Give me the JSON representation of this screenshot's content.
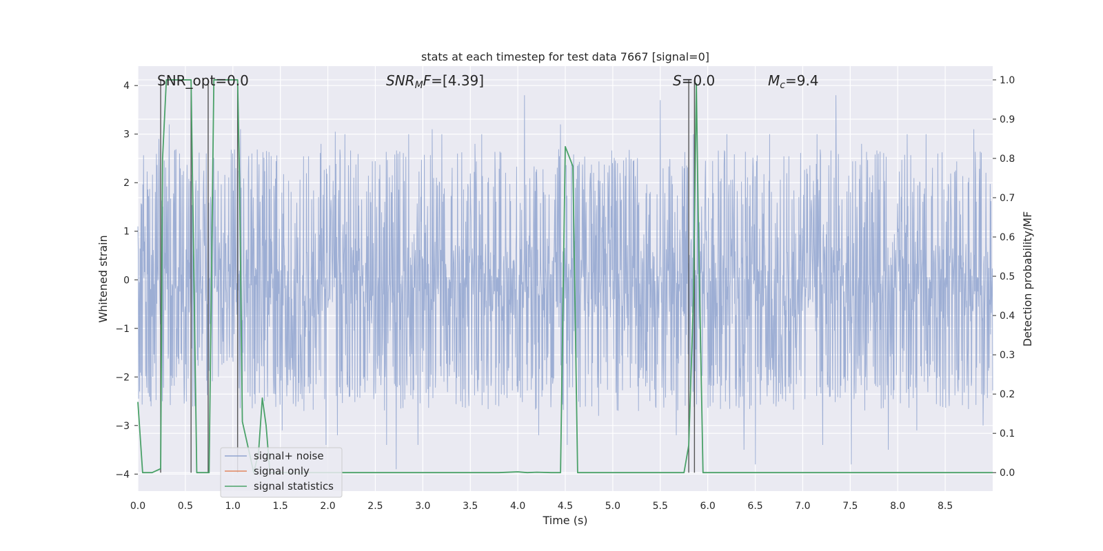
{
  "chart_data": {
    "type": "line",
    "title": "stats at each timestep for test data 7667 [signal=0]",
    "xlabel": "Time (s)",
    "ylabel_left": "Whitened strain",
    "ylabel_right": "Detection probability/MF",
    "xlim": [
      0.0,
      9.0
    ],
    "ylim_left": [
      -4.35,
      4.4
    ],
    "ylim_right": [
      -0.047,
      1.035
    ],
    "xticks": [
      "0.0",
      "0.5",
      "1.0",
      "1.5",
      "2.0",
      "2.5",
      "3.0",
      "3.5",
      "4.0",
      "4.5",
      "5.0",
      "5.5",
      "6.0",
      "6.5",
      "7.0",
      "7.5",
      "8.0",
      "8.5"
    ],
    "yticks_left": [
      "-4",
      "-3",
      "-2",
      "-1",
      "0",
      "1",
      "2",
      "3",
      "4"
    ],
    "yticks_right": [
      "0.0",
      "0.1",
      "0.2",
      "0.3",
      "0.4",
      "0.5",
      "0.6",
      "0.7",
      "0.8",
      "0.9",
      "1.0"
    ],
    "grid": true,
    "legend_position": "lower-left",
    "annotations": [
      {
        "id": "snr-opt",
        "text": "SNR_opt=0.0",
        "x": 0.2
      },
      {
        "id": "snr-mf",
        "text": "=[4.39]",
        "x": 2.6
      },
      {
        "id": "s-stat",
        "text": "=0.0",
        "x": 5.6
      },
      {
        "id": "mc",
        "text": "=9.4",
        "x": 6.6
      }
    ],
    "series": [
      {
        "name": "signal+ noise",
        "color": "#8fa3cf",
        "axis": "left",
        "kind": "noise",
        "duration_s": 9.0,
        "spikes": [
          [
            0.22,
            2.9
          ],
          [
            0.26,
            -2.5
          ],
          [
            0.33,
            3.2
          ],
          [
            0.44,
            2.6
          ],
          [
            0.6,
            -2.6
          ],
          [
            0.72,
            2.6
          ],
          [
            1.08,
            3.1
          ],
          [
            1.2,
            2.6
          ],
          [
            1.52,
            -3.1
          ],
          [
            1.75,
            -2.7
          ],
          [
            1.93,
            2.8
          ],
          [
            1.98,
            -3.4
          ],
          [
            2.08,
            3.05
          ],
          [
            2.1,
            -3.2
          ],
          [
            2.18,
            3.0
          ],
          [
            2.62,
            -3.4
          ],
          [
            2.72,
            -3.9
          ],
          [
            2.85,
            3.0
          ],
          [
            2.95,
            -3.4
          ],
          [
            3.1,
            3.1
          ],
          [
            3.2,
            3.0
          ],
          [
            3.4,
            -2.5
          ],
          [
            3.55,
            2.8
          ],
          [
            3.62,
            3.0
          ],
          [
            3.8,
            -2.6
          ],
          [
            4.07,
            3.8
          ],
          [
            4.22,
            -3.2
          ],
          [
            4.45,
            3.2
          ],
          [
            4.52,
            -3.4
          ],
          [
            4.85,
            -2.8
          ],
          [
            5.05,
            2.4
          ],
          [
            5.45,
            -2.6
          ],
          [
            5.5,
            3.7
          ],
          [
            5.67,
            -3.2
          ],
          [
            5.85,
            3.0
          ],
          [
            6.2,
            3.0
          ],
          [
            6.3,
            -2.6
          ],
          [
            6.38,
            -3.5
          ],
          [
            6.5,
            -3.8
          ],
          [
            6.65,
            3.0
          ],
          [
            6.82,
            -2.5
          ],
          [
            7.15,
            3.0
          ],
          [
            7.21,
            -3.4
          ],
          [
            7.35,
            3.8
          ],
          [
            7.51,
            -3.8
          ],
          [
            7.62,
            2.8
          ],
          [
            7.9,
            -3.5
          ],
          [
            8.1,
            3.0
          ],
          [
            8.2,
            -3.1
          ],
          [
            8.3,
            3.0
          ],
          [
            8.45,
            -2.6
          ],
          [
            8.8,
            3.1
          ],
          [
            8.9,
            -3.0
          ]
        ]
      },
      {
        "name": "signal only",
        "color": "#e1865f",
        "axis": "left",
        "x": [],
        "y": []
      },
      {
        "name": "signal statistics",
        "color": "#4aa168",
        "axis": "right",
        "x": [
          0.0,
          0.05,
          0.15,
          0.24,
          0.26,
          0.3,
          0.33,
          0.52,
          0.56,
          0.62,
          0.72,
          0.75,
          0.8,
          0.84,
          1.0,
          1.05,
          1.07,
          1.1,
          1.22,
          1.27,
          1.31,
          1.35,
          1.39,
          1.5,
          2.0,
          3.0,
          3.8,
          4.0,
          4.1,
          4.2,
          4.35,
          4.45,
          4.5,
          4.58,
          4.63,
          5.0,
          5.5,
          5.75,
          5.8,
          5.85,
          5.88,
          5.9,
          5.95,
          6.5,
          7.0,
          8.0,
          9.0
        ],
        "y": [
          0.18,
          0.0,
          0.0,
          0.01,
          0.8,
          1.0,
          1.0,
          1.0,
          1.0,
          0.0,
          0.0,
          0.0,
          1.0,
          1.0,
          1.0,
          1.0,
          0.75,
          0.13,
          0.0,
          0.05,
          0.19,
          0.12,
          0.0,
          0.0,
          0.0,
          0.0,
          0.0,
          0.002,
          0.0,
          0.001,
          0.0,
          0.0,
          0.83,
          0.78,
          0.0,
          0.0,
          0.0,
          0.0,
          0.07,
          0.45,
          0.99,
          0.65,
          0.0,
          0.0,
          0.0,
          0.0,
          0.0
        ]
      }
    ],
    "vertical_markers": {
      "color": "#555555",
      "x": [
        0.24,
        0.56,
        0.74,
        1.05,
        5.8,
        5.86
      ]
    }
  }
}
